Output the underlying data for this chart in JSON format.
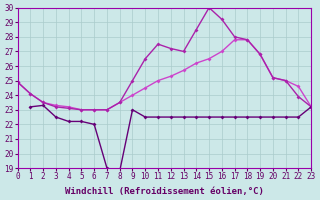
{
  "xlabel": "Windchill (Refroidissement éolien,°C)",
  "bg_color": "#cce8e8",
  "grid_color": "#aacccc",
  "line1_color": "#cc44cc",
  "line2_color": "#aa22aa",
  "line3_color": "#660077",
  "line1_x": [
    0,
    1,
    2,
    3,
    4,
    5,
    6,
    7,
    8,
    9,
    10,
    11,
    12,
    13,
    14,
    15,
    16,
    17,
    18,
    19,
    20,
    21,
    22,
    23
  ],
  "line1_y": [
    24.9,
    24.1,
    23.5,
    23.3,
    23.2,
    23.0,
    23.0,
    23.0,
    23.5,
    24.0,
    24.5,
    25.0,
    25.3,
    25.7,
    26.2,
    26.5,
    27.0,
    27.8,
    27.8,
    26.8,
    25.2,
    25.0,
    24.6,
    23.2
  ],
  "line2_x": [
    0,
    1,
    2,
    3,
    4,
    5,
    6,
    7,
    8,
    9,
    10,
    11,
    12,
    13,
    14,
    15,
    16,
    17,
    18,
    19,
    20,
    21,
    22,
    23
  ],
  "line2_y": [
    24.9,
    24.1,
    23.5,
    23.2,
    23.1,
    23.0,
    23.0,
    23.0,
    23.5,
    25.0,
    26.5,
    27.5,
    27.2,
    27.0,
    28.5,
    30.0,
    29.2,
    28.0,
    27.8,
    26.8,
    25.2,
    25.0,
    23.9,
    23.2
  ],
  "line3_x": [
    1,
    2,
    3,
    4,
    5,
    6,
    7,
    8,
    9,
    10,
    11,
    12,
    13,
    14,
    15,
    16,
    17,
    18,
    19,
    20,
    21,
    22,
    23
  ],
  "line3_y": [
    23.2,
    23.3,
    22.5,
    22.2,
    22.2,
    22.0,
    19.0,
    18.8,
    23.0,
    22.5,
    22.5,
    22.5,
    22.5,
    22.5,
    22.5,
    22.5,
    22.5,
    22.5,
    22.5,
    22.5,
    22.5,
    22.5,
    23.2
  ],
  "xlim": [
    0,
    23
  ],
  "ylim": [
    19,
    30
  ],
  "yticks": [
    19,
    20,
    21,
    22,
    23,
    24,
    25,
    26,
    27,
    28,
    29,
    30
  ],
  "xticks": [
    0,
    1,
    2,
    3,
    4,
    5,
    6,
    7,
    8,
    9,
    10,
    11,
    12,
    13,
    14,
    15,
    16,
    17,
    18,
    19,
    20,
    21,
    22,
    23
  ],
  "marker": "D",
  "markersize": 2.0,
  "linewidth": 1.0,
  "tick_fontsize": 5.5,
  "xlabel_fontsize": 6.5,
  "tick_color": "#660066",
  "label_color": "#660066"
}
